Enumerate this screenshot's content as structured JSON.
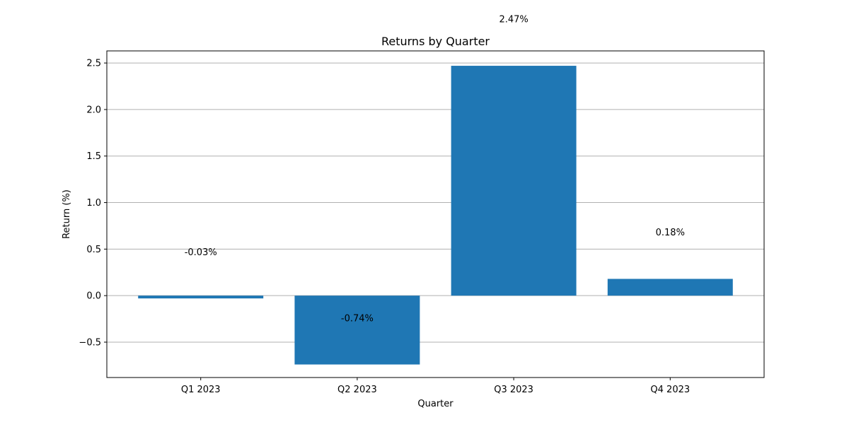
{
  "chart_data": {
    "type": "bar",
    "title": "Returns by Quarter",
    "xlabel": "Quarter",
    "ylabel": "Return (%)",
    "categories": [
      "Q1 2023",
      "Q2 2023",
      "Q3 2023",
      "Q4 2023"
    ],
    "values": [
      -0.03,
      -0.74,
      2.47,
      0.18
    ],
    "data_labels": [
      "-0.03%",
      "-0.74%",
      "2.47%",
      "0.18%"
    ],
    "ylim": [
      -0.88,
      2.63
    ],
    "yticks": [
      -0.5,
      0.0,
      0.5,
      1.0,
      1.5,
      2.0,
      2.5
    ],
    "ytick_labels": [
      "−0.5",
      "0.0",
      "0.5",
      "1.0",
      "1.5",
      "2.0",
      "2.5"
    ],
    "grid": "y",
    "bar_color": "#1f77b4",
    "grid_color": "#b0b0b0"
  }
}
